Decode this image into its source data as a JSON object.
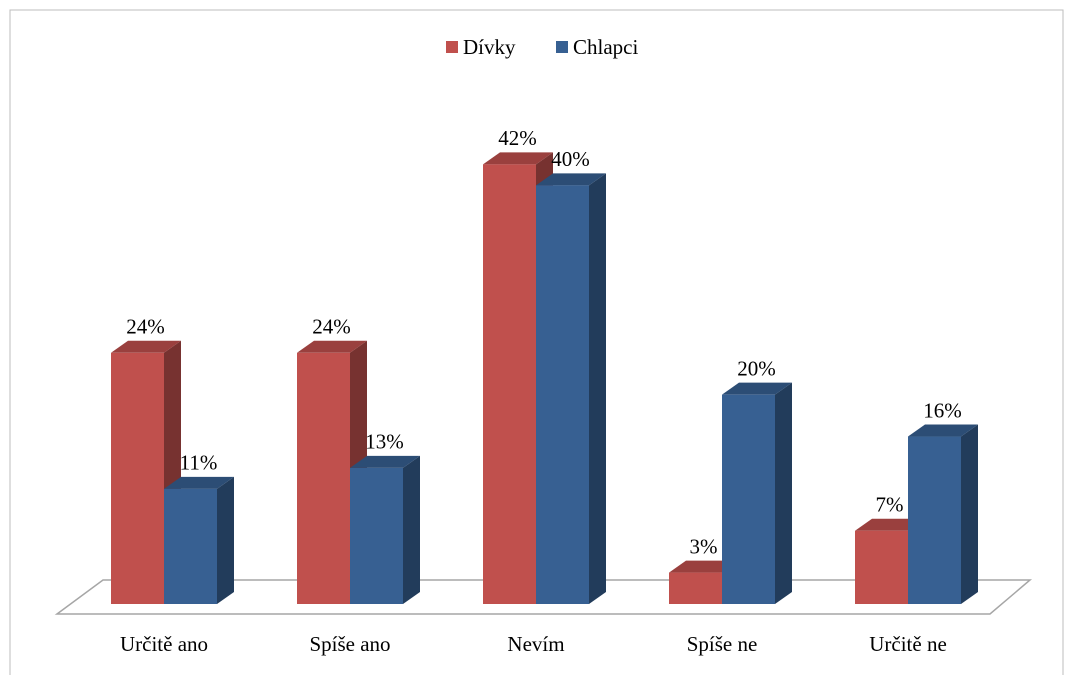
{
  "chart_data": {
    "type": "bar3d",
    "categories": [
      "Určitě ano",
      "Spíše ano",
      "Nevím",
      "Spíše ne",
      "Určitě ne"
    ],
    "series": [
      {
        "name": "Dívky",
        "color": "#c0504d",
        "values": [
          24,
          24,
          42,
          3,
          7
        ],
        "value_labels": [
          "24%",
          "24%",
          "42%",
          "3%",
          "7%"
        ]
      },
      {
        "name": "Chlapci",
        "color": "#376092",
        "values": [
          11,
          13,
          40,
          20,
          16
        ],
        "value_labels": [
          "11%",
          "13%",
          "40%",
          "20%",
          "16%"
        ]
      }
    ],
    "ylim": [
      0,
      45
    ],
    "legend": "top"
  }
}
